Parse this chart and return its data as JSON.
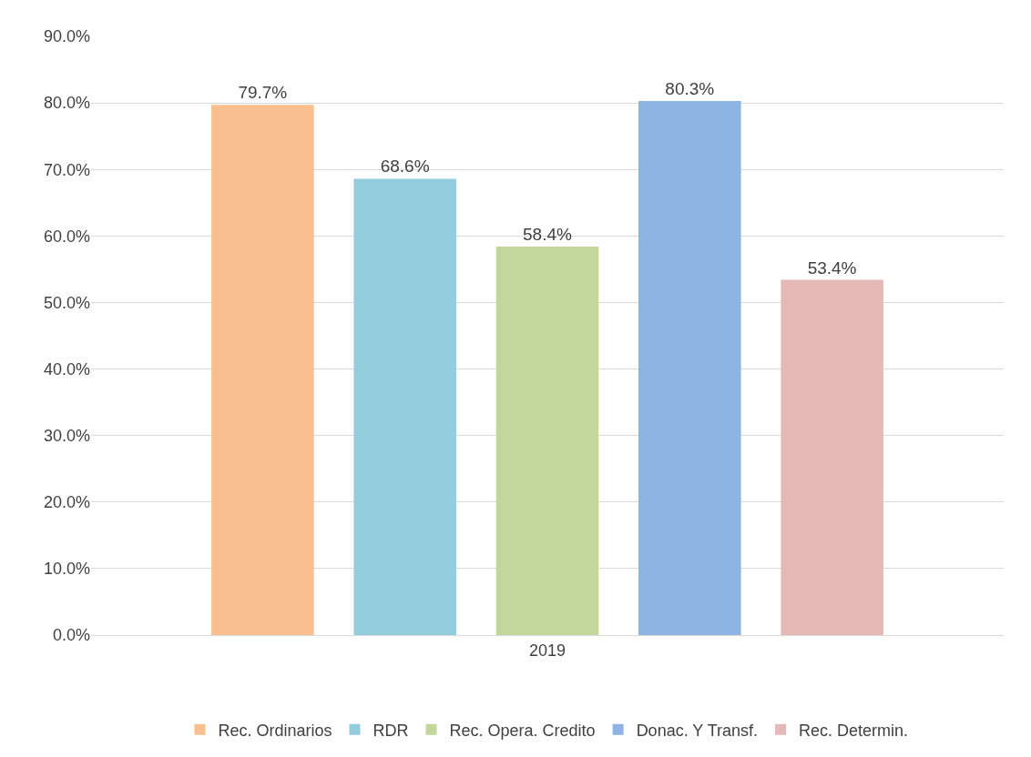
{
  "chart_data": {
    "type": "bar",
    "categories": [
      "2019"
    ],
    "series": [
      {
        "name": "Rec. Ordinarios",
        "color": "#f9bf8f",
        "values": [
          79.7
        ],
        "value_labels": [
          "79.7%"
        ]
      },
      {
        "name": "RDR",
        "color": "#93cddd",
        "values": [
          68.6
        ],
        "value_labels": [
          "68.6%"
        ]
      },
      {
        "name": "Rec. Opera. Credito",
        "color": "#c3d69b",
        "values": [
          58.4
        ],
        "value_labels": [
          "58.4%"
        ]
      },
      {
        "name": "Donac. Y Transf.",
        "color": "#8eb4e3",
        "values": [
          80.3
        ],
        "value_labels": [
          "80.3%"
        ]
      },
      {
        "name": "Rec. Determin.",
        "color": "#e6b9b8",
        "values": [
          53.4
        ],
        "value_labels": [
          "53.4%"
        ]
      }
    ],
    "ylim": [
      0,
      90
    ],
    "yticks": [
      {
        "value": 0,
        "label": "0.0%"
      },
      {
        "value": 10,
        "label": "10.0%"
      },
      {
        "value": 20,
        "label": "20.0%"
      },
      {
        "value": 30,
        "label": "30.0%"
      },
      {
        "value": 40,
        "label": "40.0%"
      },
      {
        "value": 50,
        "label": "50.0%"
      },
      {
        "value": 60,
        "label": "60.0%"
      },
      {
        "value": 70,
        "label": "70.0%"
      },
      {
        "value": 80,
        "label": "80.0%"
      },
      {
        "value": 90,
        "label": "90.0%"
      }
    ],
    "grid": "y",
    "legend": "bottom"
  }
}
